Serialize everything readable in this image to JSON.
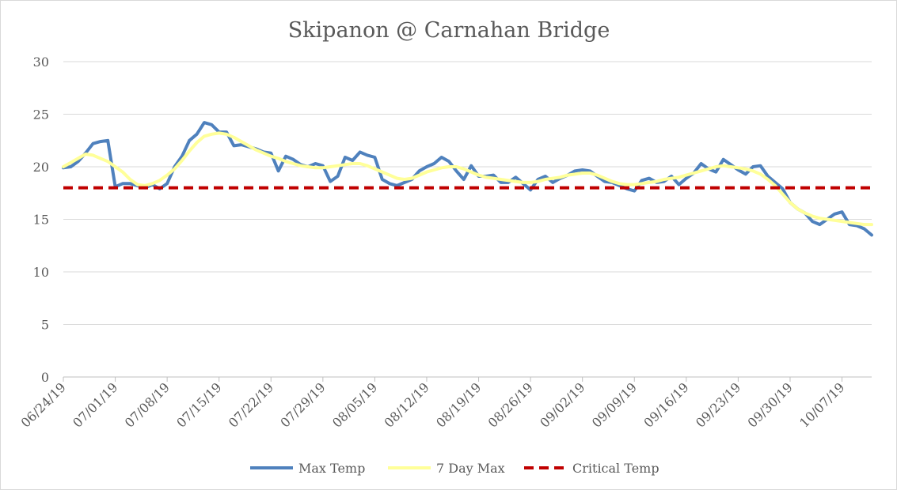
{
  "chart_data": {
    "type": "line",
    "title": "Skipanon @ Carnahan Bridge",
    "xlabel": "",
    "ylabel": "",
    "ylim": [
      0,
      30
    ],
    "y_ticks": [
      "0",
      "5",
      "10",
      "15",
      "20",
      "25",
      "30"
    ],
    "x_tick_labels": [
      "06/24/19",
      "07/01/19",
      "07/08/19",
      "07/15/19",
      "07/22/19",
      "07/29/19",
      "08/05/19",
      "08/12/19",
      "08/19/19",
      "08/26/19",
      "09/02/19",
      "09/09/19",
      "09/16/19",
      "09/23/19",
      "09/30/19",
      "10/07/19"
    ],
    "x_start": "06/24/19",
    "x_end": "10/11/19",
    "grid": "horizontal",
    "legend_position": "bottom",
    "series": [
      {
        "name": "Max Temp",
        "color": "#4f81bd",
        "style": "solid",
        "values": [
          19.9,
          20.0,
          20.5,
          21.3,
          22.2,
          22.4,
          22.5,
          18.1,
          18.4,
          18.4,
          18.2,
          18.0,
          18.3,
          17.9,
          18.4,
          20.0,
          21.0,
          22.5,
          23.1,
          24.2,
          24.0,
          23.3,
          23.3,
          22.0,
          22.1,
          21.9,
          21.7,
          21.4,
          21.3,
          19.6,
          21.0,
          20.7,
          20.2,
          20.0,
          20.3,
          20.1,
          18.6,
          19.1,
          20.9,
          20.6,
          21.4,
          21.1,
          20.9,
          18.8,
          18.4,
          18.2,
          18.5,
          18.8,
          19.6,
          20.0,
          20.3,
          20.9,
          20.5,
          19.6,
          18.8,
          20.1,
          19.1,
          19.1,
          19.2,
          18.5,
          18.5,
          19.0,
          18.4,
          17.8,
          18.8,
          19.1,
          18.5,
          18.9,
          19.2,
          19.6,
          19.7,
          19.6,
          19.1,
          18.6,
          18.5,
          18.2,
          17.9,
          17.7,
          18.7,
          18.9,
          18.5,
          18.6,
          19.1,
          18.3,
          18.9,
          19.4,
          20.3,
          19.8,
          19.5,
          20.7,
          20.2,
          19.7,
          19.3,
          20.0,
          20.1,
          19.1,
          18.5,
          17.9,
          16.6,
          16.0,
          15.6,
          14.8,
          14.5,
          15.0,
          15.5,
          15.7,
          14.5,
          14.4,
          14.1,
          13.5
        ]
      },
      {
        "name": "7 Day Max",
        "color": "#ffff99",
        "style": "solid",
        "values": [
          20.0,
          20.4,
          20.8,
          21.2,
          21.1,
          20.8,
          20.5,
          20.0,
          19.5,
          18.8,
          18.3,
          18.2,
          18.4,
          18.7,
          19.2,
          19.8,
          20.6,
          21.5,
          22.3,
          22.9,
          23.1,
          23.2,
          23.1,
          22.8,
          22.4,
          22.0,
          21.6,
          21.3,
          21.0,
          20.8,
          20.5,
          20.3,
          20.1,
          20.0,
          19.9,
          19.9,
          20.0,
          20.1,
          20.2,
          20.3,
          20.3,
          20.1,
          19.8,
          19.5,
          19.2,
          18.9,
          18.8,
          18.9,
          19.2,
          19.5,
          19.7,
          19.9,
          20.0,
          20.0,
          19.8,
          19.5,
          19.2,
          19.0,
          18.9,
          18.8,
          18.7,
          18.6,
          18.5,
          18.5,
          18.6,
          18.8,
          18.9,
          19.0,
          19.2,
          19.3,
          19.4,
          19.4,
          19.2,
          18.9,
          18.6,
          18.4,
          18.3,
          18.3,
          18.4,
          18.5,
          18.6,
          18.8,
          18.9,
          19.0,
          19.2,
          19.4,
          19.6,
          19.8,
          20.0,
          20.1,
          20.0,
          19.9,
          19.8,
          19.6,
          19.3,
          18.8,
          18.2,
          17.4,
          16.6,
          16.0,
          15.6,
          15.3,
          15.1,
          15.0,
          14.9,
          14.8,
          14.7,
          14.6,
          14.5,
          14.5
        ]
      },
      {
        "name": "Critical Temp",
        "color": "#c00000",
        "style": "dashed",
        "values": [
          18,
          18
        ]
      }
    ]
  }
}
